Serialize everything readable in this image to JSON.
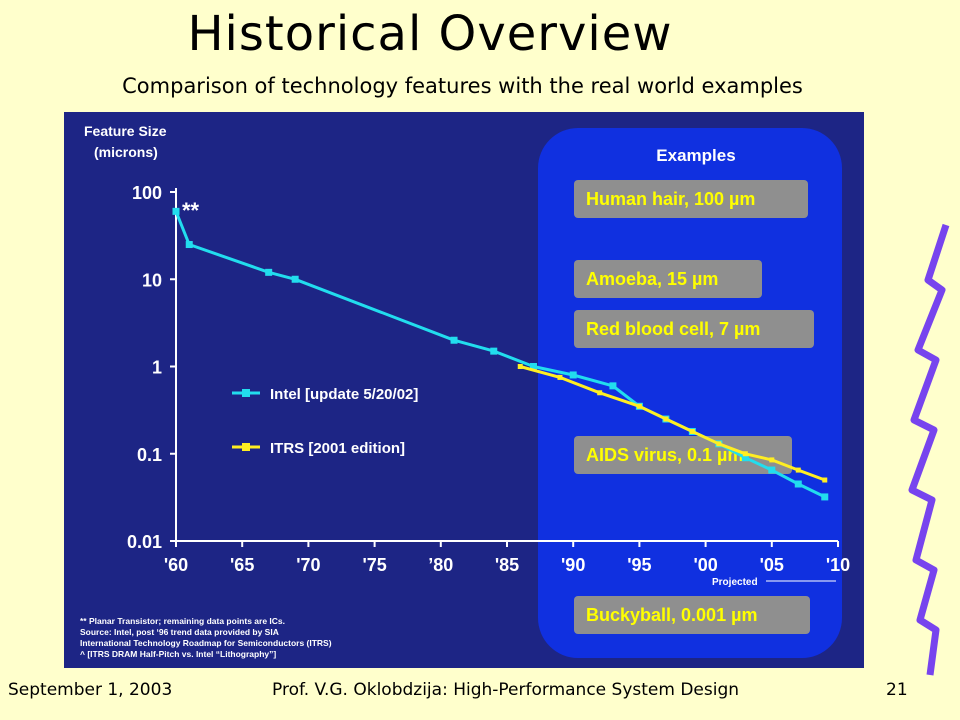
{
  "slide": {
    "title": "Historical Overview",
    "subtitle": "Comparison of technology features with the real world examples",
    "footer_date": "September 1, 2003",
    "footer_author": "Prof. V.G. Oklobdzija: High-Performance System Design",
    "footer_page": "21"
  },
  "chart_data": {
    "type": "line",
    "ylabel": "Feature Size\n(microns)",
    "y_scale": "log",
    "ylim": [
      0.01,
      100
    ],
    "xlim": [
      1960,
      2010
    ],
    "yticks": [
      {
        "v": 100,
        "label": "100"
      },
      {
        "v": 10,
        "label": "10"
      },
      {
        "v": 1,
        "label": "1"
      },
      {
        "v": 0.1,
        "label": "0.1"
      },
      {
        "v": 0.01,
        "label": "0.01"
      }
    ],
    "xticks": [
      {
        "v": 1960,
        "label": "'60"
      },
      {
        "v": 1965,
        "label": "'65"
      },
      {
        "v": 1970,
        "label": "'70"
      },
      {
        "v": 1975,
        "label": "'75"
      },
      {
        "v": 1980,
        "label": "’80"
      },
      {
        "v": 1985,
        "label": "'85"
      },
      {
        "v": 1990,
        "label": "'90"
      },
      {
        "v": 1995,
        "label": "'95"
      },
      {
        "v": 2000,
        "label": "'00"
      },
      {
        "v": 2005,
        "label": "'05"
      },
      {
        "v": 2010,
        "label": "'10"
      }
    ],
    "annotation": "**",
    "projected_label": "Projected",
    "series": [
      {
        "name": "Intel [update 5/20/02]",
        "color": "#22ddee",
        "x": [
          1960,
          1961,
          1967,
          1969,
          1981,
          1984,
          1987,
          1990,
          1993,
          1995,
          1997,
          1999,
          2001,
          2003,
          2005,
          2007,
          2009
        ],
        "y": [
          60,
          25,
          12,
          10,
          2,
          1.5,
          1,
          0.8,
          0.6,
          0.35,
          0.25,
          0.18,
          0.13,
          0.09,
          0.065,
          0.045,
          0.032
        ]
      },
      {
        "name": "ITRS [2001 edition]",
        "color": "#ffee22",
        "x": [
          1986,
          1989,
          1992,
          1995,
          1997,
          1999,
          2001,
          2003,
          2005,
          2007,
          2009
        ],
        "y": [
          1,
          0.75,
          0.5,
          0.35,
          0.25,
          0.18,
          0.13,
          0.1,
          0.085,
          0.065,
          0.05
        ]
      }
    ]
  },
  "examples": {
    "heading": "Examples",
    "items": [
      "Human hair, 100 µm",
      "Amoeba, 15 µm",
      "Red blood cell, 7 µm",
      "AIDS virus, 0.1 µm",
      "Buckyball, 0.001 µm"
    ]
  },
  "footnote": [
    "** Planar Transistor; remaining data points are ICs.",
    "Source: Intel, post ‘96 trend data provided by SIA",
    "International Technology Roadmap for Semiconductors (ITRS)",
    "^ [ITRS DRAM Half-Pitch vs. Intel “Lithography”]"
  ]
}
